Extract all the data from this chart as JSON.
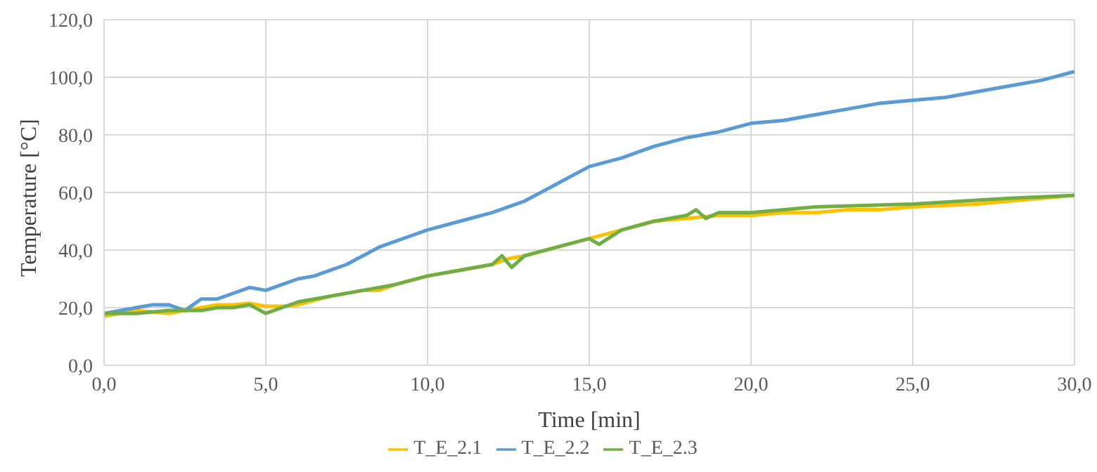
{
  "chart_data": {
    "type": "line",
    "xlabel": "Time [min]",
    "ylabel": "Temperature [°C]",
    "xlim": [
      0,
      30
    ],
    "ylim": [
      0,
      120
    ],
    "xticks": [
      {
        "value": 0,
        "label": "0,0"
      },
      {
        "value": 5,
        "label": "5,0"
      },
      {
        "value": 10,
        "label": "10,0"
      },
      {
        "value": 15,
        "label": "15,0"
      },
      {
        "value": 20,
        "label": "20,0"
      },
      {
        "value": 25,
        "label": "25,0"
      },
      {
        "value": 30,
        "label": "30,0"
      }
    ],
    "yticks": [
      {
        "value": 0,
        "label": "0,0"
      },
      {
        "value": 20,
        "label": "20,0"
      },
      {
        "value": 40,
        "label": "40,0"
      },
      {
        "value": 60,
        "label": "60,0"
      },
      {
        "value": 80,
        "label": "80,0"
      },
      {
        "value": 100,
        "label": "100,0"
      },
      {
        "value": 120,
        "label": "120,0"
      }
    ],
    "grid": true,
    "legend": "bottom",
    "marker": "none",
    "line_style": "solid",
    "series": [
      {
        "name": "T_E_2.1",
        "color": "#ffc000",
        "x": [
          0,
          1,
          2,
          3,
          3.5,
          4,
          4.5,
          5,
          5.5,
          6,
          7,
          8,
          8.5,
          9,
          10,
          11,
          12,
          12.5,
          13,
          14,
          15,
          16,
          17,
          18,
          19,
          20,
          21,
          22,
          23,
          24,
          25,
          26,
          27,
          28,
          29,
          30
        ],
        "values": [
          17,
          19,
          18,
          20,
          21,
          21,
          21.5,
          20.5,
          20.5,
          21,
          24,
          26,
          26,
          28,
          31,
          33,
          35,
          37,
          38,
          41,
          44,
          47,
          50,
          51,
          52,
          52,
          53,
          53,
          54,
          54,
          55,
          55.5,
          56,
          57,
          58,
          59
        ]
      },
      {
        "name": "T_E_2.2",
        "color": "#5b9bd5",
        "x": [
          0,
          0.5,
          1,
          1.5,
          2,
          2.5,
          3,
          3.5,
          4,
          4.5,
          5,
          5.5,
          6,
          6.5,
          7,
          7.5,
          8,
          8.5,
          9,
          9.5,
          10,
          11,
          12,
          13,
          14,
          15,
          16,
          17,
          18,
          19,
          20,
          21,
          22,
          23,
          24,
          25,
          26,
          27,
          28,
          29,
          30
        ],
        "values": [
          18,
          19,
          20,
          21,
          21,
          19,
          23,
          23,
          25,
          27,
          26,
          28,
          30,
          31,
          33,
          35,
          38,
          41,
          43,
          45,
          47,
          50,
          53,
          57,
          63,
          69,
          72,
          76,
          79,
          81,
          84,
          85,
          87,
          89,
          91,
          92,
          93,
          95,
          97,
          99,
          102
        ]
      },
      {
        "name": "T_E_2.3",
        "color": "#70ad47",
        "x": [
          0,
          1,
          2,
          3,
          3.5,
          4,
          4.5,
          5,
          5.5,
          6,
          7,
          8,
          9,
          10,
          11,
          12,
          12.3,
          12.6,
          13,
          14,
          15,
          15.3,
          16,
          17,
          18,
          18.3,
          18.6,
          19,
          20,
          22,
          25,
          28,
          30
        ],
        "values": [
          18,
          18,
          19,
          19,
          20,
          20,
          21,
          18,
          20,
          22,
          24,
          26,
          28,
          31,
          33,
          35,
          38,
          34,
          38,
          41,
          44,
          42,
          47,
          50,
          52,
          54,
          51,
          53,
          53,
          55,
          56,
          58,
          59
        ]
      }
    ]
  }
}
